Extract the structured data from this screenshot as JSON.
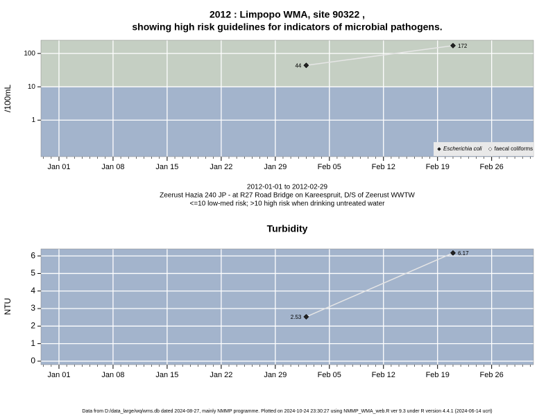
{
  "chart_data": [
    {
      "type": "line",
      "title": [
        "2012 : Limpopo WMA, site 90322 ,",
        "showing high risk guidelines for indicators of microbial pathogens."
      ],
      "annotations": [
        "2012-01-01 to 2012-02-29",
        "Zeerust Hazia 240 JP - at R27 Road Bridge on Kareespruit, D/S of Zeerust WWTW",
        "<=10 low-med risk; >10 high risk when drinking untreated water"
      ],
      "y_label": "/100mL",
      "log_y": true,
      "x": [
        "2012-02-02",
        "2012-02-21"
      ],
      "series": [
        {
          "name": "Escherichia coli",
          "color": "#222222",
          "values": [
            44,
            172
          ]
        },
        {
          "name": "faecal coliforms",
          "color": "#ffffff",
          "values": [
            null,
            null
          ]
        }
      ],
      "xlim": [
        "2011-12-29T16:00",
        "2012-03-02T10:00"
      ],
      "xticks": [
        {
          "value": "2012-01-01",
          "label": "Jan 01"
        },
        {
          "value": "2012-01-08",
          "label": "Jan 08"
        },
        {
          "value": "2012-01-15",
          "label": "Jan 15"
        },
        {
          "value": "2012-01-22",
          "label": "Jan 22"
        },
        {
          "value": "2012-01-29",
          "label": "Jan 29"
        },
        {
          "value": "2012-02-05",
          "label": "Feb 05"
        },
        {
          "value": "2012-02-12",
          "label": "Feb 12"
        },
        {
          "value": "2012-02-19",
          "label": "Feb 19"
        },
        {
          "value": "2012-02-26",
          "label": "Feb 26"
        }
      ],
      "ylim": [
        0.08,
        250
      ],
      "yticks": [
        1,
        10,
        100
      ],
      "threshold": 10,
      "background": {
        "below": "#a3b4cc",
        "above": "#c5cfc3"
      },
      "grid": true,
      "legend": "bottom-right"
    },
    {
      "type": "line",
      "title": "Turbidity",
      "y_label": "NTU",
      "log_y": false,
      "x": [
        "2012-02-02",
        "2012-02-21"
      ],
      "series": [
        {
          "name": "Turbidity",
          "color": "#222222",
          "values": [
            2.53,
            6.17
          ]
        }
      ],
      "xlim": [
        "2011-12-29T16:00",
        "2012-03-02T10:00"
      ],
      "xticks": [
        {
          "value": "2012-01-01",
          "label": "Jan 01"
        },
        {
          "value": "2012-01-08",
          "label": "Jan 08"
        },
        {
          "value": "2012-01-15",
          "label": "Jan 15"
        },
        {
          "value": "2012-01-22",
          "label": "Jan 22"
        },
        {
          "value": "2012-01-29",
          "label": "Jan 29"
        },
        {
          "value": "2012-02-05",
          "label": "Feb 05"
        },
        {
          "value": "2012-02-12",
          "label": "Feb 12"
        },
        {
          "value": "2012-02-19",
          "label": "Feb 19"
        },
        {
          "value": "2012-02-26",
          "label": "Feb 26"
        }
      ],
      "ylim": [
        -0.2,
        6.4
      ],
      "yticks": [
        0,
        1,
        2,
        3,
        4,
        5,
        6
      ],
      "background": {
        "below": "#a3b4cc"
      },
      "grid": true
    }
  ],
  "footer": "Data from D:/data_large/wq/wms.db dated 2024-08-27, mainly NMMP programme. Plotted on 2024-10-24 23:30:27 using NMMP_WMA_web.R ver 9.3 under R version 4.4.1 (2024-06-14 ucrt)"
}
